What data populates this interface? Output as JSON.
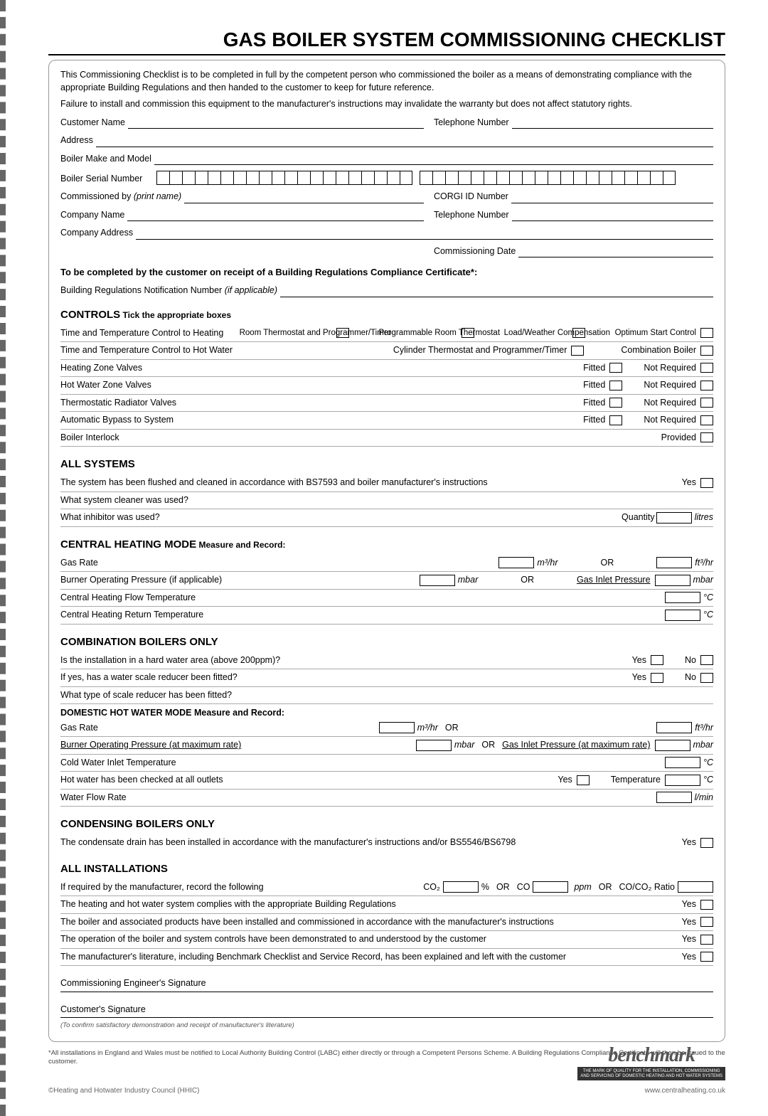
{
  "title": "GAS BOILER SYSTEM COMMISSIONING CHECKLIST",
  "intro": {
    "p1": "This Commissioning Checklist is to be completed in full by the competent person who commissioned the boiler as a means of demonstrating compliance with the appropriate Building Regulations and then handed to the customer to keep for future reference.",
    "p2": "Failure to install and commission this equipment to the manufacturer's instructions may invalidate the warranty but does not affect statutory rights."
  },
  "fields": {
    "customer_name": "Customer Name",
    "telephone": "Telephone Number",
    "address": "Address",
    "boiler_make_model": "Boiler Make and Model",
    "boiler_serial": "Boiler Serial Number",
    "commissioned_by": "Commissioned by ",
    "commissioned_by_hint": "(print name)",
    "corgi_id": "CORGI ID Number",
    "company_name": "Company Name",
    "company_address": "Company Address",
    "commissioning_date": "Commissioning Date"
  },
  "customer_receipt": {
    "heading": "To be completed by the customer on receipt of a Building Regulations Compliance Certificate*:",
    "sub": "Building Regulations Notification Number ",
    "sub_hint": "(if applicable)"
  },
  "controls": {
    "heading": "CONTROLS",
    "heading_sub": " Tick the appropriate boxes",
    "heating_ctrl": "Time and Temperature Control to Heating",
    "opts1": [
      "Room Thermostat and Programmer/Timer",
      "Programmable Room Thermostat",
      "Load/Weather Compensation",
      "Optimum Start Control"
    ],
    "hw_ctrl": "Time and Temperature Control to Hot Water",
    "opts2": [
      "Cylinder Thermostat and Programmer/Timer",
      "Combination Boiler"
    ],
    "rows": [
      {
        "label": "Heating Zone Valves",
        "a": "Fitted",
        "b": "Not Required"
      },
      {
        "label": "Hot Water Zone Valves",
        "a": "Fitted",
        "b": "Not Required"
      },
      {
        "label": "Thermostatic Radiator Valves",
        "a": "Fitted",
        "b": "Not Required"
      },
      {
        "label": "Automatic Bypass to System",
        "a": "Fitted",
        "b": "Not Required"
      },
      {
        "label": "Boiler Interlock",
        "a": "",
        "b": "Provided"
      }
    ]
  },
  "all_systems": {
    "heading": "ALL SYSTEMS",
    "r1": "The system has been flushed and cleaned in accordance with BS7593 and boiler manufacturer's instructions",
    "yes": "Yes",
    "r2": "What system cleaner was used?",
    "r3": "What inhibitor was used?",
    "qty": "Quantity",
    "qty_unit": "litres"
  },
  "central_heating": {
    "heading": "CENTRAL HEATING MODE",
    "heading_sub": " Measure and Record:",
    "gas_rate": "Gas Rate",
    "m3hr": "m³/hr",
    "or": "OR",
    "ft3hr": "ft³/hr",
    "burner": "Burner Operating Pressure (if applicable)",
    "mbar": "mbar",
    "gas_inlet": "Gas Inlet Pressure",
    "flow_temp": "Central Heating Flow Temperature",
    "return_temp": "Central Heating Return Temperature",
    "degc": "°C"
  },
  "combi": {
    "heading": "COMBINATION BOILERS ONLY",
    "r1": "Is the installation in a hard water area (above 200ppm)?",
    "r2": "If yes, has a water scale reducer been fitted?",
    "r3": "What type of scale reducer has been fitted?",
    "yes": "Yes",
    "no": "No",
    "dhw_heading": "DOMESTIC HOT WATER MODE Measure and Record:",
    "gas_rate": "Gas Rate",
    "burner": "Burner Operating Pressure (at maximum rate)",
    "gas_inlet_max": "Gas Inlet Pressure (at maximum rate)",
    "cold_inlet": "Cold Water Inlet Temperature",
    "hot_checked": "Hot water has been checked at all outlets",
    "temperature": "Temperature",
    "flow_rate": "Water Flow Rate",
    "lmin": "l/min"
  },
  "condensing": {
    "heading": "CONDENSING BOILERS ONLY",
    "r1": "The condensate drain has been installed in accordance with the manufacturer's instructions and/or BS5546/BS6798",
    "yes": "Yes"
  },
  "all_install": {
    "heading": "ALL INSTALLATIONS",
    "r1": "If required by the manufacturer, record the following",
    "co2": "CO₂",
    "pct": "%",
    "or": "OR",
    "co": "CO",
    "ppm": "ppm",
    "ratio": "CO/CO₂ Ratio",
    "r2": "The heating and hot water system complies with the appropriate Building Regulations",
    "r3": "The boiler and associated products have been installed and commissioned in accordance with the manufacturer's instructions",
    "r4": "The operation of the boiler and system controls have been demonstrated to and understood by the customer",
    "r5": "The manufacturer's literature, including Benchmark Checklist and Service Record, has been explained and left with the customer",
    "yes": "Yes"
  },
  "signatures": {
    "engineer": "Commissioning Engineer's Signature",
    "customer": "Customer's Signature",
    "note": "(To confirm satisfactory demonstration and receipt of manufacturer's literature)"
  },
  "legal": "*All installations in England and Wales must be notified to Local Authority Building Control (LABC) either directly or through a Competent Persons Scheme. A Building Regulations Compliance Certificate will then be issued to the customer.",
  "footer": {
    "left": "©Heating and Hotwater Industry Council (HHIC)",
    "right": "www.centralheating.co.uk"
  },
  "benchmark": {
    "word": "benchmark",
    "tag1": "THE MARK OF QUALITY FOR THE INSTALLATION, COMMISSIONING",
    "tag2": "AND SERVICING OF DOMESTIC HEATING AND HOT WATER SYSTEMS"
  }
}
